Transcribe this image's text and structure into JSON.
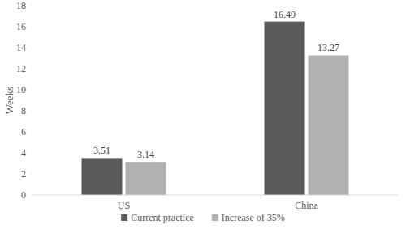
{
  "chart_data": {
    "type": "bar",
    "y_label": "Weeks",
    "categories": [
      "US",
      "China"
    ],
    "series": [
      {
        "name": "Current practice",
        "color": "#595959",
        "values": [
          3.51,
          16.49
        ]
      },
      {
        "name": "Increase of 35%",
        "color": "#b1b1b1",
        "values": [
          3.14,
          13.27
        ]
      }
    ],
    "ylim": [
      0,
      18
    ],
    "yticks": [
      0,
      2,
      4,
      6,
      8,
      10,
      12,
      14,
      16,
      18
    ],
    "grid": false,
    "legend": "bottom",
    "data_labels": true
  }
}
